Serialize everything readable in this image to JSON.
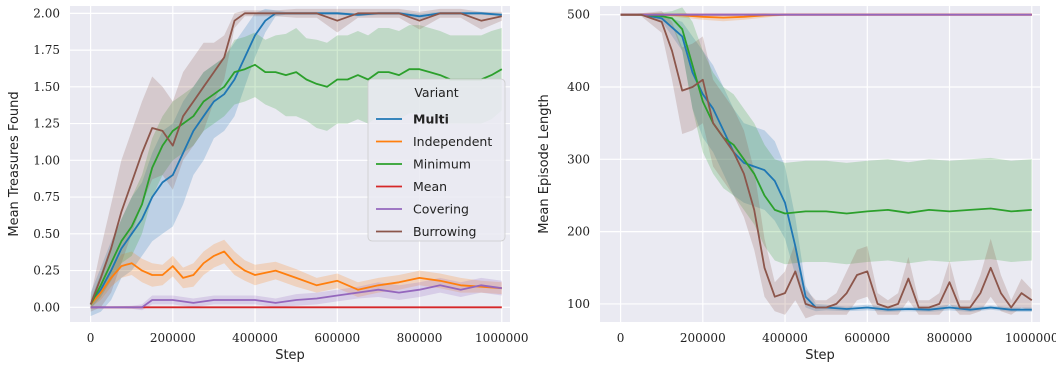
{
  "chart_data": [
    {
      "type": "line",
      "xlabel": "Step",
      "ylabel": "Mean Treasures Found",
      "xlim": [
        -50000,
        1020000
      ],
      "ylim": [
        -0.1,
        2.05
      ],
      "xticks": [
        0,
        200000,
        400000,
        600000,
        800000,
        1000000
      ],
      "xtick_labels": [
        "0",
        "200000",
        "400000",
        "600000",
        "800000",
        "1000000"
      ],
      "yticks": [
        0.0,
        0.25,
        0.5,
        0.75,
        1.0,
        1.25,
        1.5,
        1.75,
        2.0
      ],
      "ytick_labels": [
        "0.00",
        "0.25",
        "0.50",
        "0.75",
        "1.00",
        "1.25",
        "1.50",
        "1.75",
        "2.00"
      ],
      "grid": true,
      "legend": {
        "title": "Variant",
        "placement": "center-right",
        "entries": [
          "Multi",
          "Independent",
          "Minimum",
          "Mean",
          "Covering",
          "Burrowing"
        ]
      },
      "series": [
        {
          "name": "Multi",
          "color": "#1f77b4",
          "x": [
            0,
            25000,
            50000,
            75000,
            100000,
            125000,
            150000,
            175000,
            200000,
            225000,
            250000,
            275000,
            300000,
            325000,
            350000,
            375000,
            400000,
            425000,
            450000,
            475000,
            500000,
            550000,
            600000,
            650000,
            700000,
            750000,
            800000,
            850000,
            900000,
            950000,
            1000000
          ],
          "y": [
            0.02,
            0.12,
            0.25,
            0.4,
            0.5,
            0.6,
            0.75,
            0.85,
            0.9,
            1.05,
            1.2,
            1.3,
            1.4,
            1.45,
            1.55,
            1.7,
            1.85,
            1.95,
            2.0,
            2.0,
            2.0,
            2.0,
            2.0,
            1.99,
            2.0,
            2.0,
            1.98,
            2.0,
            2.0,
            2.0,
            1.99
          ],
          "band": [
            0.08,
            0.15,
            0.2,
            0.2,
            0.25,
            0.25,
            0.3,
            0.35,
            0.35,
            0.35,
            0.3,
            0.3,
            0.25,
            0.25,
            0.25,
            0.2,
            0.15,
            0.08,
            0.02,
            0.01,
            0.01,
            0.01,
            0.01,
            0.01,
            0.01,
            0.01,
            0.02,
            0.01,
            0.01,
            0.01,
            0.01
          ]
        },
        {
          "name": "Independent",
          "color": "#ff7f0e",
          "x": [
            0,
            25000,
            50000,
            75000,
            100000,
            125000,
            150000,
            175000,
            200000,
            225000,
            250000,
            275000,
            300000,
            325000,
            350000,
            375000,
            400000,
            450000,
            500000,
            550000,
            600000,
            650000,
            700000,
            750000,
            800000,
            850000,
            900000,
            950000,
            1000000
          ],
          "y": [
            0.02,
            0.1,
            0.2,
            0.28,
            0.3,
            0.25,
            0.22,
            0.22,
            0.28,
            0.2,
            0.22,
            0.3,
            0.35,
            0.38,
            0.3,
            0.25,
            0.22,
            0.25,
            0.2,
            0.15,
            0.18,
            0.12,
            0.15,
            0.17,
            0.2,
            0.18,
            0.15,
            0.14,
            0.13
          ],
          "band": [
            0.02,
            0.05,
            0.06,
            0.08,
            0.08,
            0.08,
            0.08,
            0.07,
            0.07,
            0.07,
            0.08,
            0.08,
            0.08,
            0.08,
            0.08,
            0.07,
            0.07,
            0.06,
            0.06,
            0.05,
            0.05,
            0.05,
            0.05,
            0.05,
            0.05,
            0.05,
            0.05,
            0.04,
            0.04
          ]
        },
        {
          "name": "Minimum",
          "color": "#2ca02c",
          "x": [
            0,
            25000,
            50000,
            75000,
            100000,
            125000,
            150000,
            175000,
            200000,
            225000,
            250000,
            275000,
            300000,
            325000,
            350000,
            375000,
            400000,
            425000,
            450000,
            475000,
            500000,
            525000,
            550000,
            575000,
            600000,
            625000,
            650000,
            675000,
            700000,
            725000,
            750000,
            775000,
            800000,
            825000,
            850000,
            875000,
            900000,
            925000,
            950000,
            975000,
            1000000
          ],
          "y": [
            0.02,
            0.15,
            0.3,
            0.45,
            0.55,
            0.7,
            0.95,
            1.1,
            1.2,
            1.25,
            1.3,
            1.4,
            1.45,
            1.5,
            1.6,
            1.62,
            1.65,
            1.6,
            1.6,
            1.58,
            1.6,
            1.55,
            1.52,
            1.5,
            1.55,
            1.55,
            1.58,
            1.55,
            1.6,
            1.6,
            1.58,
            1.62,
            1.62,
            1.6,
            1.58,
            1.55,
            1.55,
            1.55,
            1.55,
            1.58,
            1.62
          ],
          "band": [
            0.03,
            0.08,
            0.12,
            0.15,
            0.2,
            0.2,
            0.2,
            0.2,
            0.2,
            0.2,
            0.2,
            0.2,
            0.2,
            0.2,
            0.22,
            0.22,
            0.22,
            0.22,
            0.25,
            0.28,
            0.3,
            0.28,
            0.3,
            0.3,
            0.3,
            0.3,
            0.3,
            0.3,
            0.3,
            0.3,
            0.3,
            0.3,
            0.3,
            0.3,
            0.3,
            0.3,
            0.3,
            0.3,
            0.3,
            0.3,
            0.28
          ]
        },
        {
          "name": "Mean",
          "color": "#d62728",
          "x": [
            0,
            1000000
          ],
          "y": [
            0.0,
            0.0
          ],
          "band": [
            0.0,
            0.0
          ]
        },
        {
          "name": "Covering",
          "color": "#9467bd",
          "x": [
            0,
            100000,
            125000,
            150000,
            200000,
            250000,
            300000,
            350000,
            400000,
            450000,
            500000,
            550000,
            600000,
            650000,
            700000,
            750000,
            800000,
            850000,
            900000,
            950000,
            1000000
          ],
          "y": [
            0.0,
            0.0,
            0.0,
            0.05,
            0.05,
            0.03,
            0.05,
            0.05,
            0.05,
            0.03,
            0.05,
            0.06,
            0.08,
            0.1,
            0.12,
            0.1,
            0.12,
            0.15,
            0.12,
            0.15,
            0.13
          ],
          "band": [
            0.0,
            0.01,
            0.02,
            0.03,
            0.03,
            0.03,
            0.03,
            0.03,
            0.03,
            0.03,
            0.04,
            0.04,
            0.04,
            0.04,
            0.05,
            0.05,
            0.05,
            0.05,
            0.05,
            0.05,
            0.05
          ]
        },
        {
          "name": "Burrowing",
          "color": "#8c564b",
          "x": [
            0,
            25000,
            50000,
            75000,
            100000,
            125000,
            150000,
            175000,
            200000,
            225000,
            250000,
            275000,
            300000,
            325000,
            350000,
            375000,
            400000,
            450000,
            500000,
            550000,
            600000,
            650000,
            700000,
            750000,
            800000,
            850000,
            900000,
            950000,
            1000000
          ],
          "y": [
            0.02,
            0.2,
            0.4,
            0.65,
            0.85,
            1.05,
            1.22,
            1.2,
            1.1,
            1.3,
            1.4,
            1.5,
            1.6,
            1.7,
            1.95,
            2.0,
            2.0,
            2.0,
            2.0,
            2.0,
            1.95,
            2.0,
            2.0,
            2.0,
            1.95,
            2.0,
            2.0,
            1.95,
            1.98
          ],
          "band": [
            0.05,
            0.2,
            0.3,
            0.35,
            0.35,
            0.35,
            0.35,
            0.3,
            0.3,
            0.3,
            0.3,
            0.3,
            0.2,
            0.15,
            0.05,
            0.02,
            0.02,
            0.02,
            0.03,
            0.03,
            0.08,
            0.03,
            0.03,
            0.03,
            0.06,
            0.03,
            0.03,
            0.06,
            0.03
          ]
        }
      ]
    },
    {
      "type": "line",
      "xlabel": "Step",
      "ylabel": "Mean Episode Length",
      "xlim": [
        -50000,
        1020000
      ],
      "ylim": [
        75,
        512
      ],
      "xticks": [
        0,
        200000,
        400000,
        600000,
        800000,
        1000000
      ],
      "xtick_labels": [
        "0",
        "200000",
        "400000",
        "600000",
        "800000",
        "1000000"
      ],
      "yticks": [
        100,
        200,
        300,
        400,
        500
      ],
      "ytick_labels": [
        "100",
        "200",
        "300",
        "400",
        "500"
      ],
      "grid": true,
      "series": [
        {
          "name": "Multi",
          "color": "#1f77b4",
          "x": [
            0,
            50000,
            100000,
            150000,
            175000,
            200000,
            225000,
            250000,
            275000,
            300000,
            325000,
            350000,
            375000,
            400000,
            425000,
            450000,
            475000,
            500000,
            550000,
            600000,
            650000,
            700000,
            750000,
            800000,
            850000,
            900000,
            950000,
            1000000
          ],
          "y": [
            500,
            500,
            495,
            470,
            420,
            390,
            370,
            340,
            310,
            295,
            290,
            285,
            270,
            240,
            180,
            110,
            95,
            95,
            93,
            95,
            92,
            93,
            92,
            95,
            92,
            95,
            92,
            92
          ],
          "band": [
            0,
            1,
            4,
            20,
            50,
            60,
            60,
            60,
            60,
            55,
            55,
            55,
            55,
            50,
            40,
            15,
            5,
            4,
            3,
            4,
            3,
            3,
            3,
            4,
            3,
            3,
            3,
            3
          ]
        },
        {
          "name": "Independent",
          "color": "#ff7f0e",
          "x": [
            0,
            100000,
            150000,
            200000,
            250000,
            300000,
            350000,
            400000,
            450000,
            500000,
            600000,
            700000,
            800000,
            900000,
            1000000
          ],
          "y": [
            500,
            500,
            499,
            497,
            496,
            497,
            499,
            500,
            500,
            500,
            500,
            500,
            500,
            500,
            500
          ],
          "band": [
            0,
            1,
            3,
            4,
            5,
            4,
            3,
            1,
            1,
            0,
            0,
            0,
            0,
            0,
            0
          ]
        },
        {
          "name": "Minimum",
          "color": "#2ca02c",
          "x": [
            0,
            50000,
            100000,
            125000,
            150000,
            175000,
            200000,
            225000,
            250000,
            275000,
            300000,
            325000,
            350000,
            375000,
            400000,
            450000,
            500000,
            550000,
            600000,
            650000,
            700000,
            750000,
            800000,
            850000,
            900000,
            950000,
            1000000
          ],
          "y": [
            500,
            500,
            498,
            495,
            480,
            430,
            380,
            350,
            330,
            320,
            300,
            280,
            250,
            230,
            225,
            228,
            228,
            225,
            228,
            230,
            226,
            230,
            228,
            230,
            232,
            228,
            230
          ],
          "band": [
            0,
            1,
            5,
            10,
            30,
            60,
            70,
            70,
            70,
            70,
            70,
            70,
            70,
            70,
            70,
            70,
            70,
            70,
            70,
            70,
            70,
            70,
            70,
            70,
            70,
            70,
            70
          ]
        },
        {
          "name": "Mean",
          "color": "#d62728",
          "x": [
            0,
            1000000
          ],
          "y": [
            500,
            500
          ],
          "band": [
            0,
            0
          ]
        },
        {
          "name": "Covering",
          "color": "#9467bd",
          "x": [
            0,
            1000000
          ],
          "y": [
            500,
            500
          ],
          "band": [
            0,
            0
          ]
        },
        {
          "name": "Burrowing",
          "color": "#8c564b",
          "x": [
            0,
            50000,
            100000,
            125000,
            150000,
            175000,
            200000,
            225000,
            250000,
            275000,
            300000,
            325000,
            350000,
            375000,
            400000,
            425000,
            450000,
            475000,
            500000,
            525000,
            550000,
            575000,
            600000,
            625000,
            650000,
            675000,
            700000,
            725000,
            750000,
            775000,
            800000,
            825000,
            850000,
            875000,
            900000,
            925000,
            950000,
            975000,
            1000000
          ],
          "y": [
            500,
            500,
            490,
            450,
            395,
            400,
            410,
            350,
            330,
            310,
            280,
            230,
            150,
            110,
            115,
            145,
            100,
            95,
            95,
            100,
            115,
            140,
            145,
            100,
            95,
            100,
            135,
            95,
            95,
            100,
            130,
            95,
            95,
            115,
            150,
            115,
            95,
            115,
            105
          ],
          "band": [
            0,
            2,
            15,
            40,
            60,
            60,
            60,
            60,
            60,
            60,
            60,
            55,
            40,
            20,
            30,
            40,
            20,
            10,
            10,
            15,
            30,
            35,
            35,
            15,
            10,
            15,
            30,
            10,
            10,
            15,
            30,
            10,
            10,
            25,
            40,
            25,
            10,
            20,
            15
          ]
        }
      ]
    }
  ]
}
